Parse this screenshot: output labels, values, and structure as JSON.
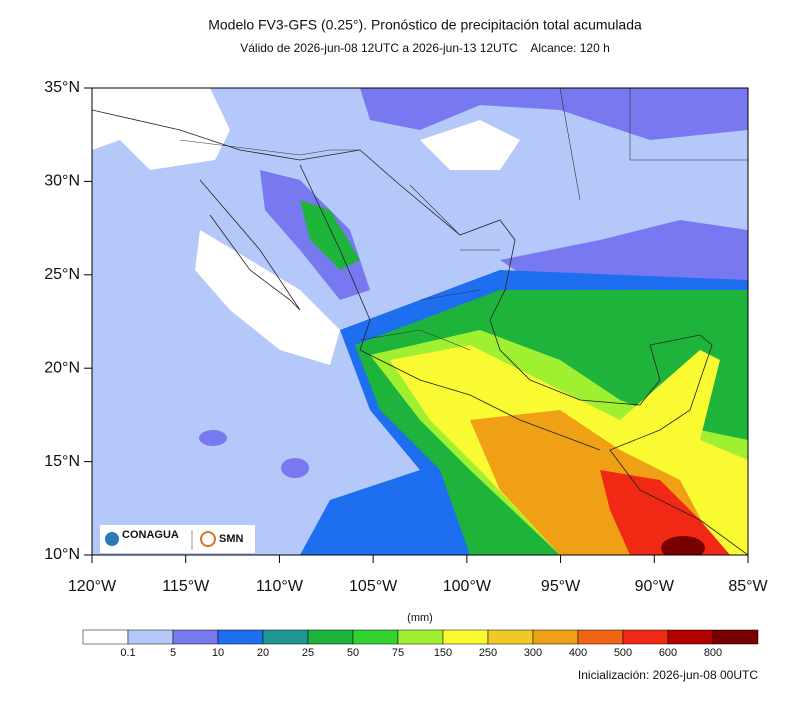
{
  "title": "Modelo FV3-GFS (0.25°). Pronóstico de precipitación total acumulada",
  "subtitle": "Válido de 2026-jun-08 12UTC a 2026-jun-13 12UTC    Alcance: 120 h",
  "map": {
    "xlim": [
      -120,
      -85
    ],
    "ylim": [
      10,
      35
    ],
    "xticks": [
      {
        "value": -120,
        "label": "120°W"
      },
      {
        "value": -115,
        "label": "115°W"
      },
      {
        "value": -110,
        "label": "110°W"
      },
      {
        "value": -105,
        "label": "105°W"
      },
      {
        "value": -100,
        "label": "100°W"
      },
      {
        "value": -95,
        "label": "95°W"
      },
      {
        "value": -90,
        "label": "90°W"
      },
      {
        "value": -85,
        "label": "85°W"
      }
    ],
    "yticks": [
      {
        "value": 35,
        "label": "35°N"
      },
      {
        "value": 30,
        "label": "30°N"
      },
      {
        "value": 25,
        "label": "25°N"
      },
      {
        "value": 20,
        "label": "20°N"
      },
      {
        "value": 15,
        "label": "15°N"
      },
      {
        "value": 10,
        "label": "10°N"
      }
    ]
  },
  "colorbar": {
    "unit": "(mm)",
    "colors": [
      "#ffffff",
      "#b4c8fa",
      "#7878f0",
      "#1e6ef0",
      "#1e9696",
      "#1eb43c",
      "#32d232",
      "#a0f032",
      "#fafa32",
      "#f0c828",
      "#f0a014",
      "#f06414",
      "#f02814",
      "#b40000",
      "#780000"
    ],
    "labels": [
      0.1,
      5,
      10,
      20,
      25,
      50,
      75,
      150,
      250,
      300,
      400,
      500,
      600,
      800
    ]
  },
  "initialization": "Inicialización: 2026-jun-08 00UTC",
  "logos": [
    "CONAGUA",
    "SMN"
  ]
}
